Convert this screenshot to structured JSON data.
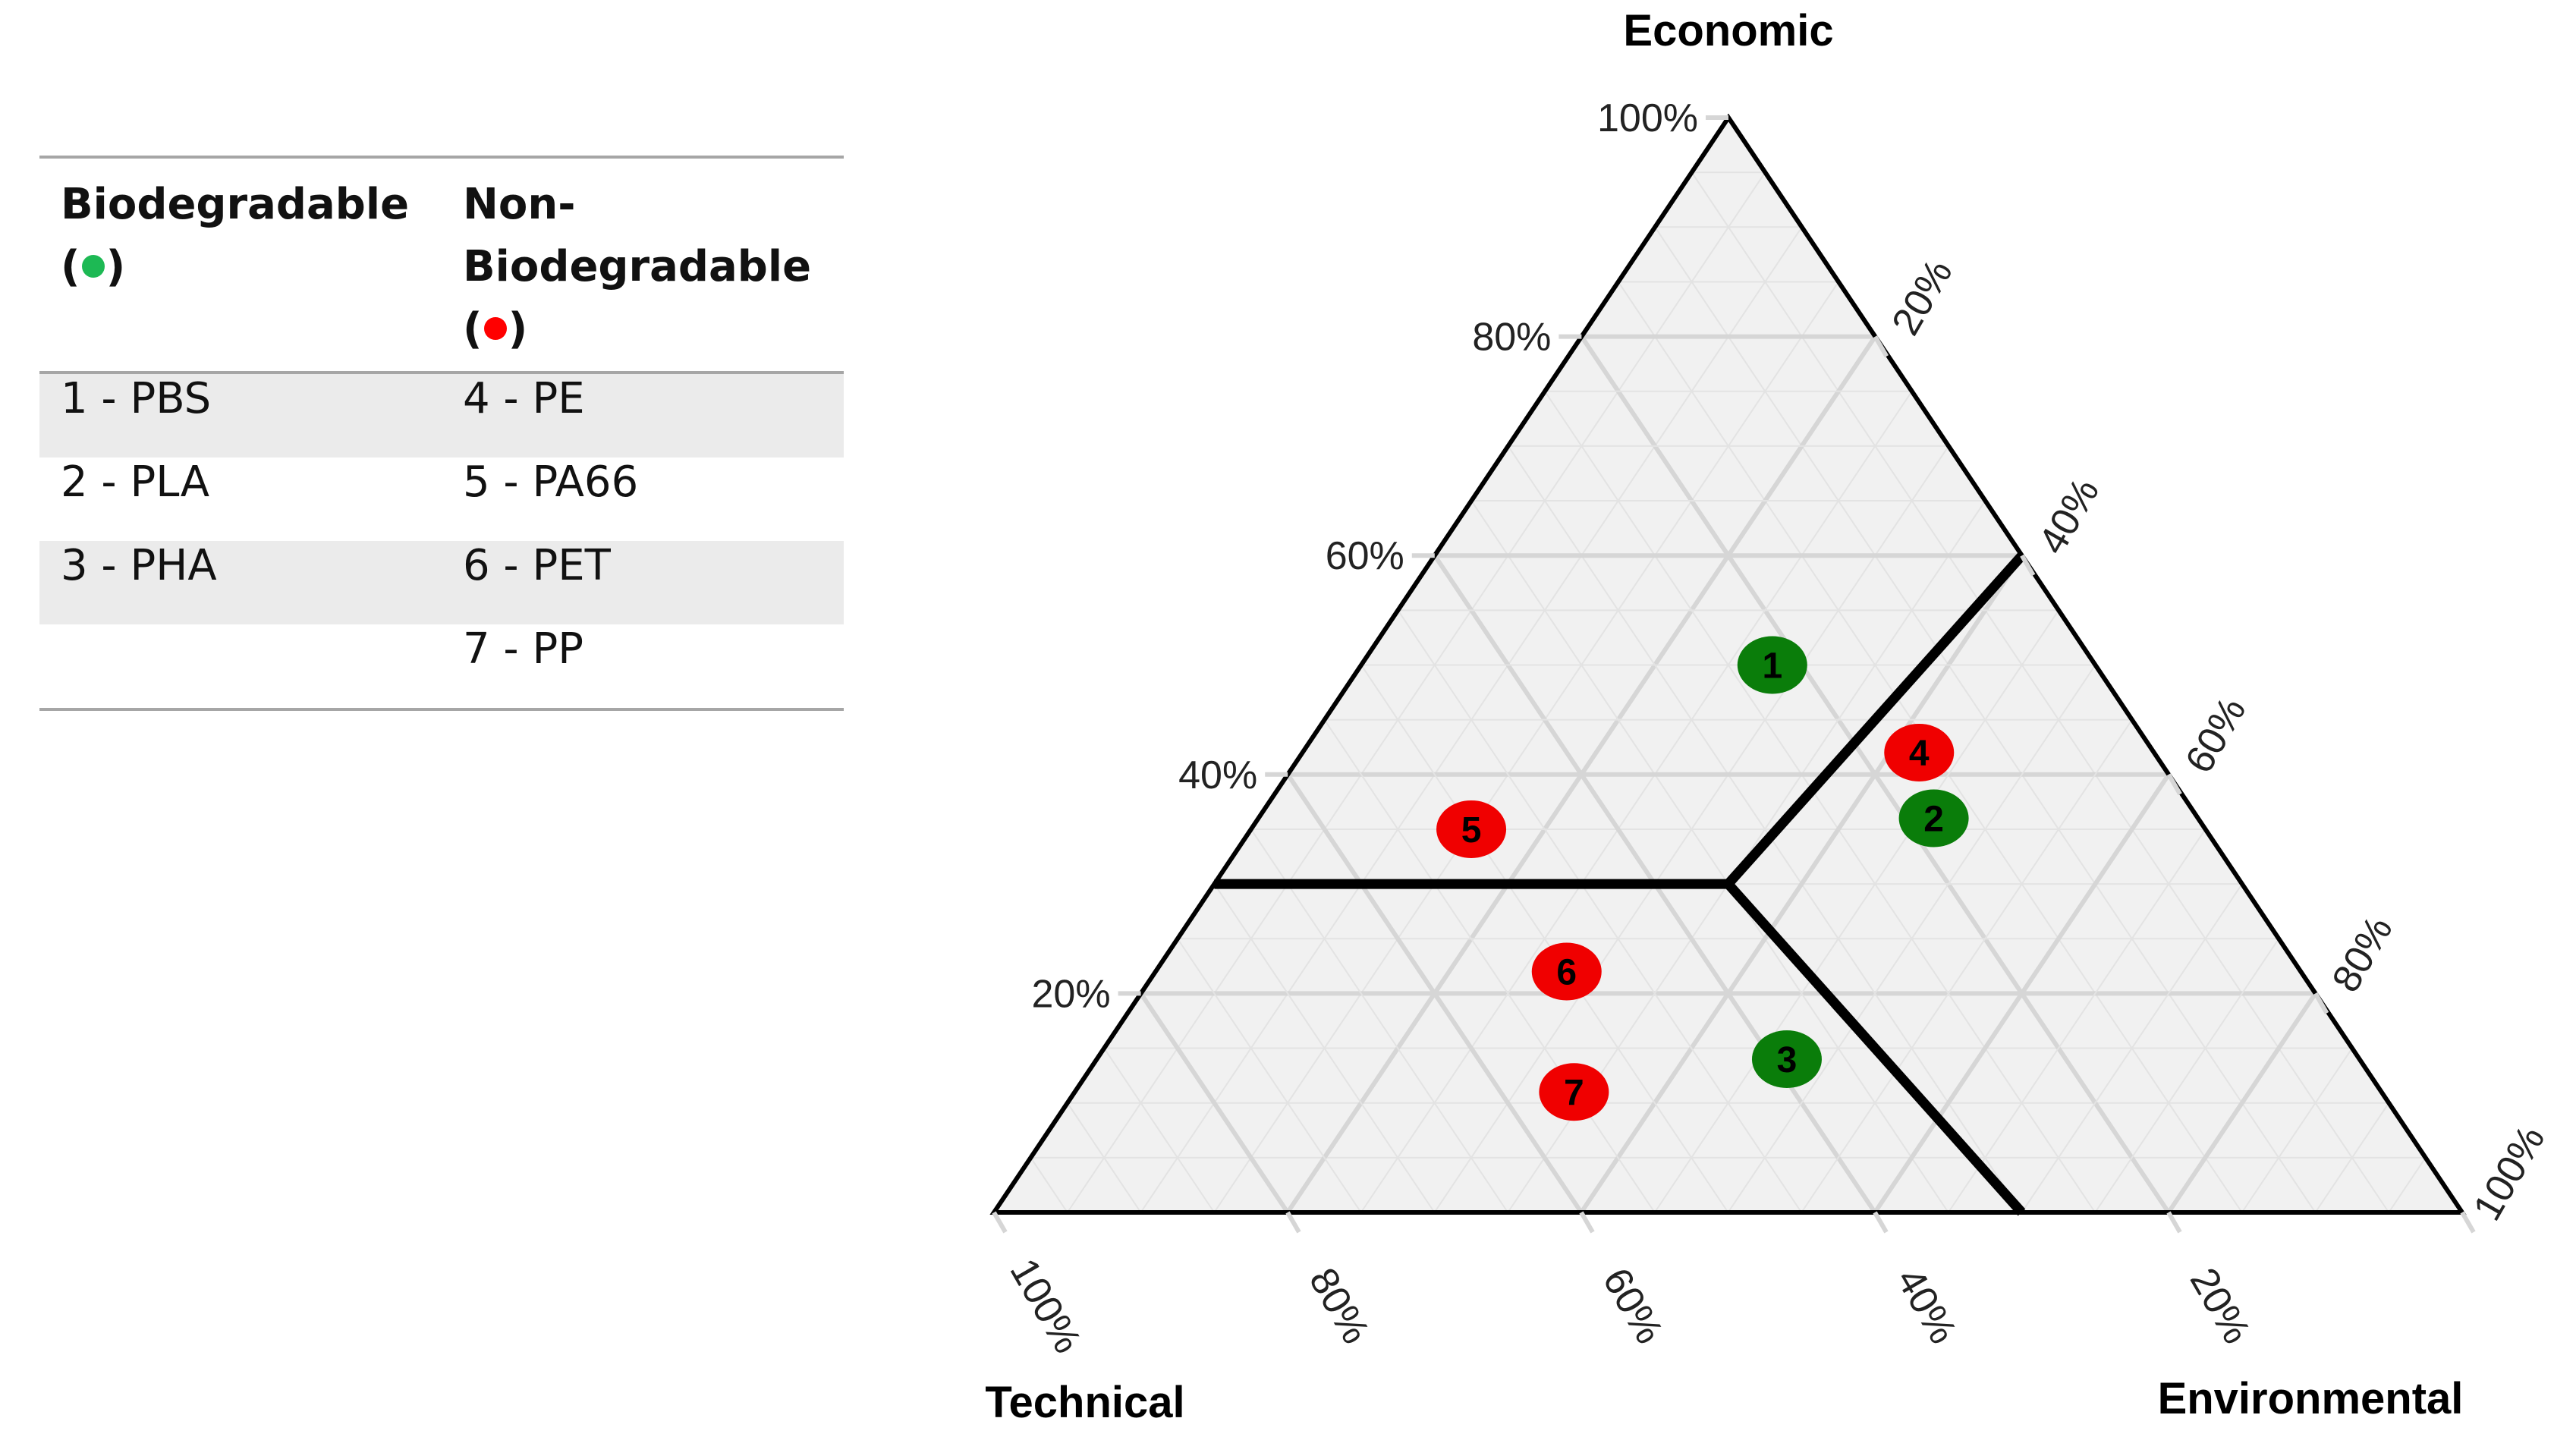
{
  "legend": {
    "headers": {
      "bio_label": "Biodegradable",
      "nonbio_label_1": "Non-",
      "nonbio_label_2": "Biodegradable"
    },
    "bio_color": "#1db954",
    "nonbio_color": "#ff0000",
    "rows": [
      {
        "bio": "1 - PBS",
        "nonbio": "4 - PE"
      },
      {
        "bio": "2 - PLA",
        "nonbio": "5 - PA66"
      },
      {
        "bio": "3 - PHA",
        "nonbio": "6 - PET"
      },
      {
        "bio": "",
        "nonbio": "7 - PP"
      }
    ]
  },
  "chart_data": {
    "type": "ternary-scatter",
    "axes": {
      "top": {
        "label": "Economic",
        "ticks": [
          "100%",
          "80%",
          "60%",
          "40%",
          "20%"
        ]
      },
      "right": {
        "label": "Environmental",
        "ticks": [
          "20%",
          "40%",
          "60%",
          "80%",
          "100%"
        ]
      },
      "left": {
        "label": "Technical",
        "ticks": [
          "100%",
          "80%",
          "60%",
          "40%",
          "20%"
        ]
      }
    },
    "region_boundaries": [
      {
        "from": {
          "economic": 30,
          "technical": 35,
          "environmental": 35
        },
        "to": {
          "economic": 30,
          "technical": 70,
          "environmental": 0
        }
      },
      {
        "from": {
          "economic": 30,
          "technical": 35,
          "environmental": 35
        },
        "to": {
          "economic": 60,
          "technical": 0,
          "environmental": 40
        }
      },
      {
        "from": {
          "economic": 30,
          "technical": 35,
          "environmental": 35
        },
        "to": {
          "economic": 0,
          "technical": 30,
          "environmental": 70
        }
      }
    ],
    "colors": {
      "biodegradable": "#0a7d0a",
      "non_biodegradable": "#f00000"
    },
    "points": [
      {
        "id": "1",
        "name": "PBS",
        "group": "biodegradable",
        "economic": 50,
        "technical": 22,
        "environmental": 28
      },
      {
        "id": "2",
        "name": "PLA",
        "group": "biodegradable",
        "economic": 36,
        "technical": 18,
        "environmental": 46
      },
      {
        "id": "3",
        "name": "PHA",
        "group": "biodegradable",
        "economic": 14,
        "technical": 39,
        "environmental": 47
      },
      {
        "id": "4",
        "name": "PE",
        "group": "non_biodegradable",
        "economic": 42,
        "technical": 16,
        "environmental": 42
      },
      {
        "id": "5",
        "name": "PA66",
        "group": "non_biodegradable",
        "economic": 35,
        "technical": 50,
        "environmental": 15
      },
      {
        "id": "6",
        "name": "PET",
        "group": "non_biodegradable",
        "economic": 22,
        "technical": 50,
        "environmental": 28
      },
      {
        "id": "7",
        "name": "PP",
        "group": "non_biodegradable",
        "economic": 11,
        "technical": 55,
        "environmental": 34
      }
    ]
  }
}
